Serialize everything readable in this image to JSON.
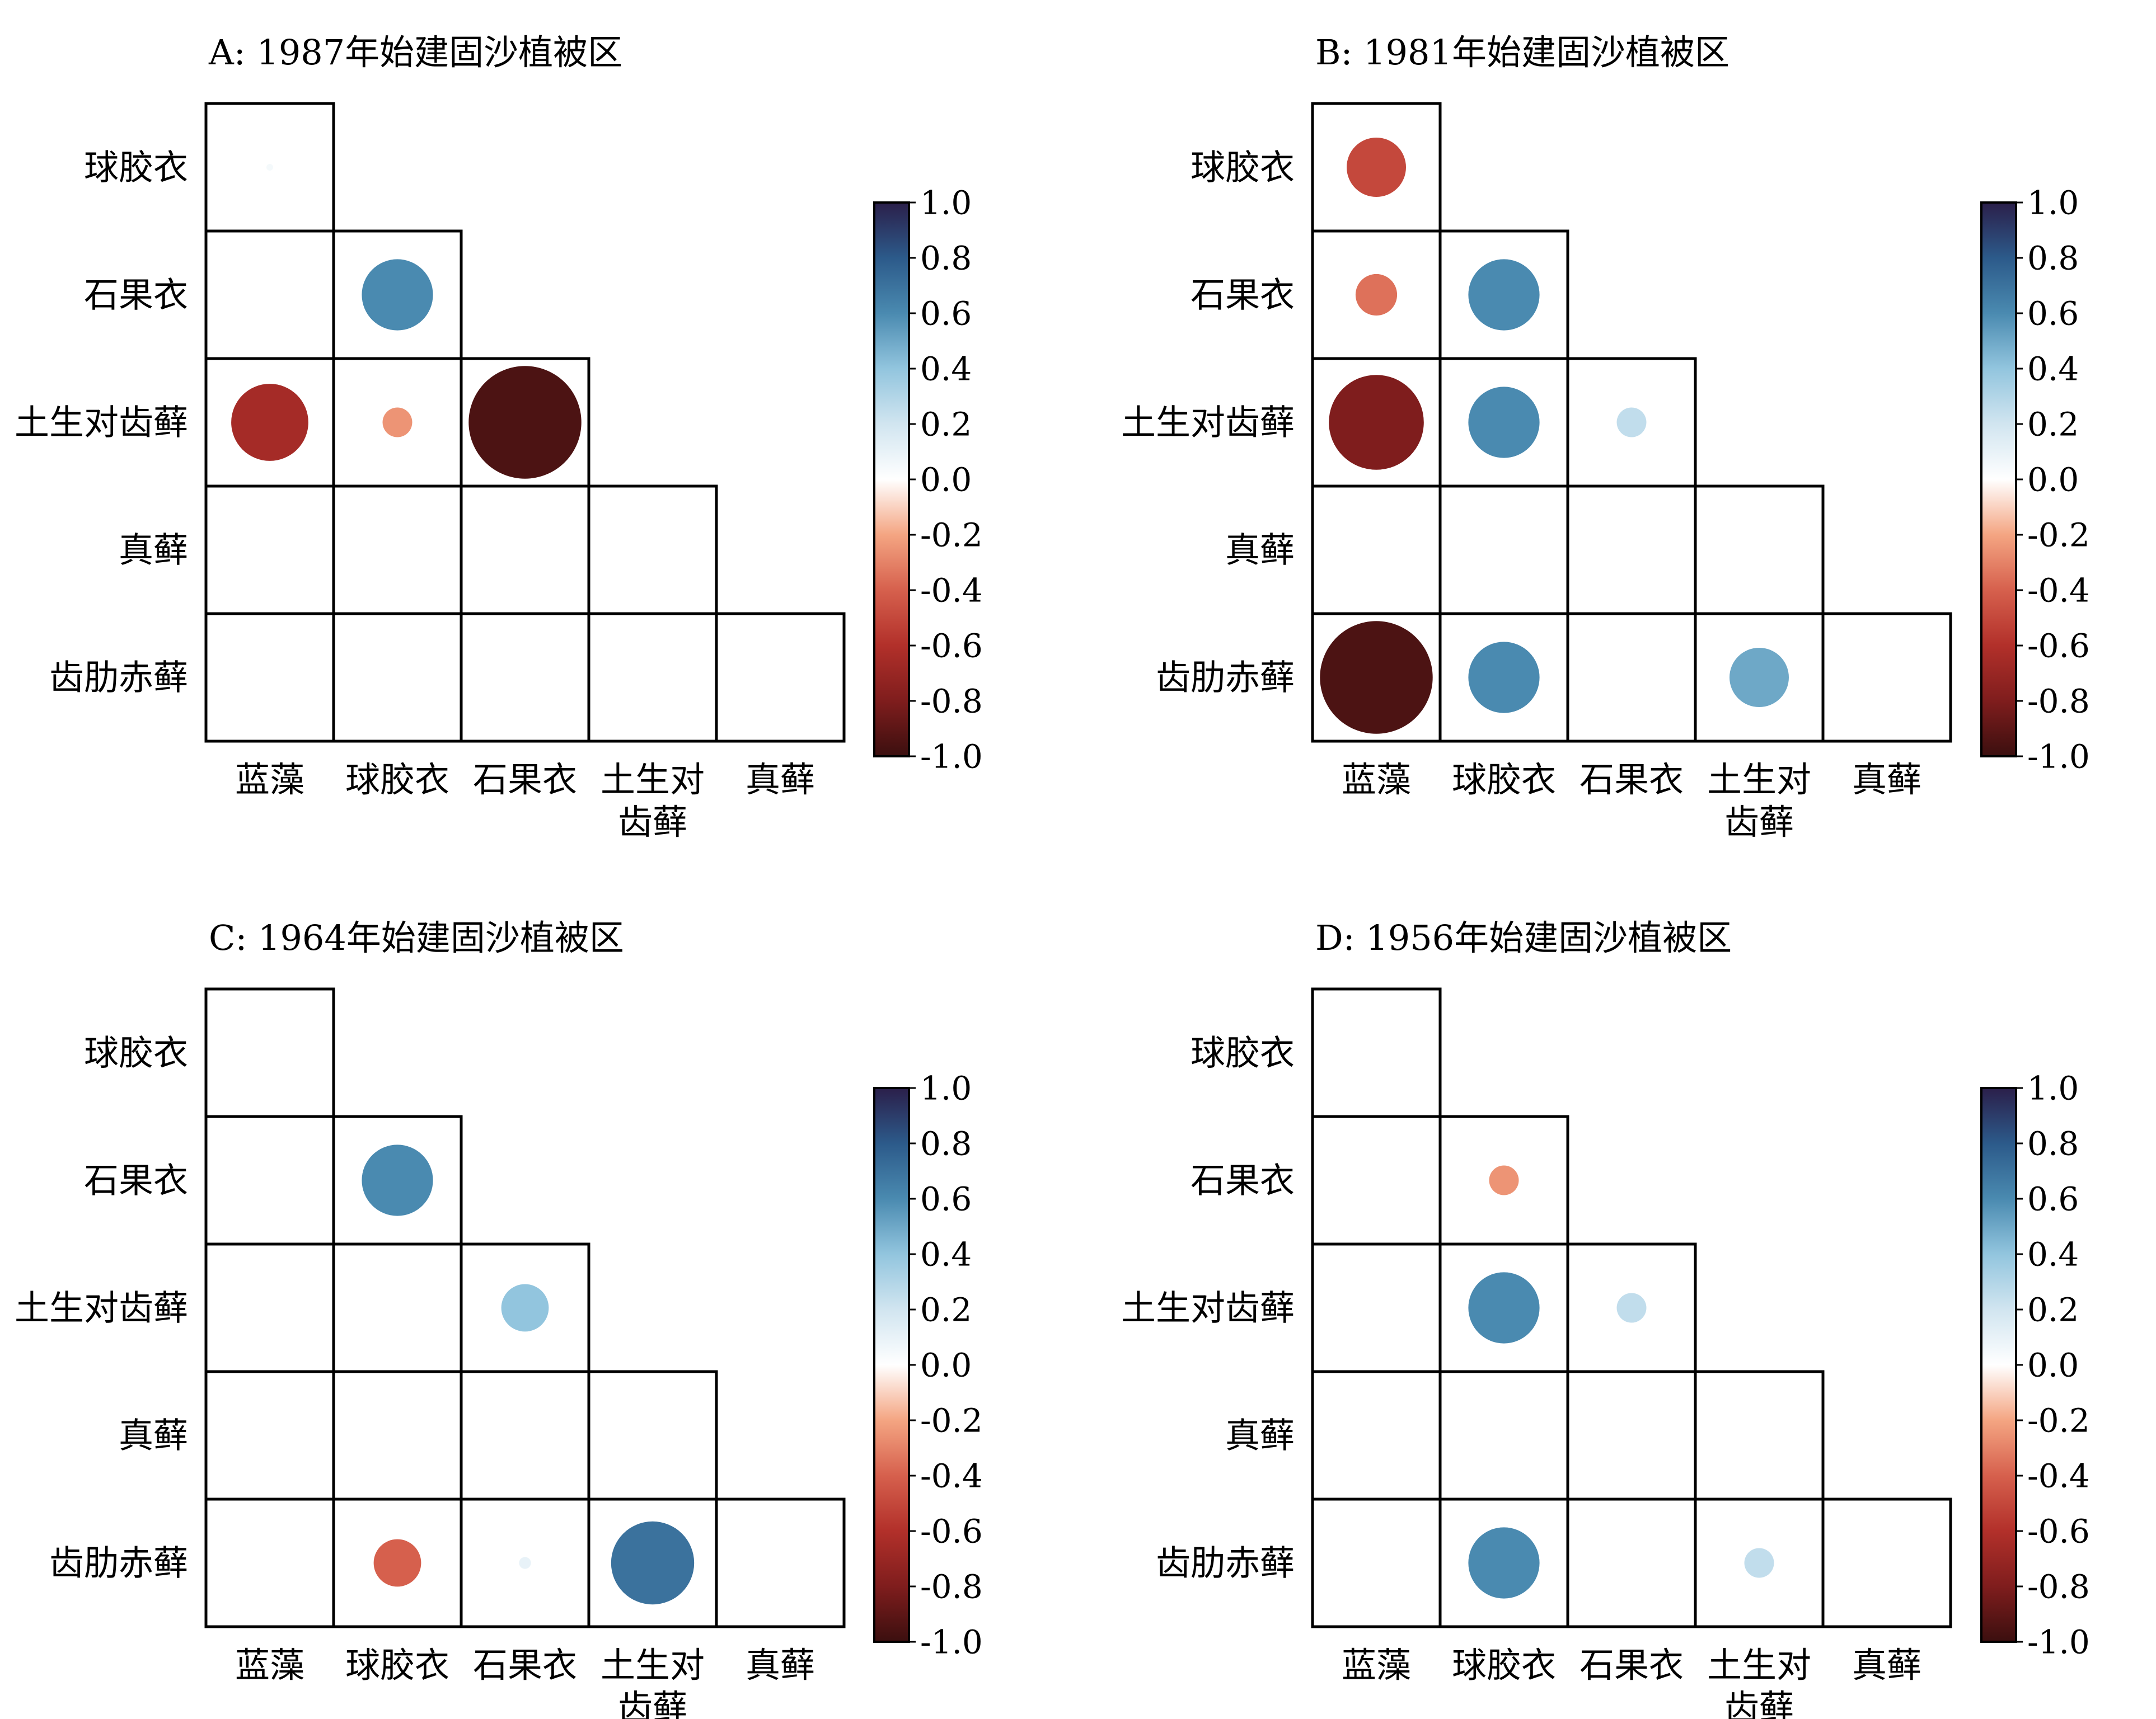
{
  "colorbar_ticks": [
    "1.0",
    "0.8",
    "0.6",
    "0.4",
    "0.2",
    "0.0",
    "-0.2",
    "-0.4",
    "-0.6",
    "-0.8",
    "-1.0"
  ],
  "colorscale": {
    "stops": [
      {
        "v": -1.0,
        "color": "#3b0f0f"
      },
      {
        "v": -0.8,
        "color": "#7f1d1d"
      },
      {
        "v": -0.6,
        "color": "#b2302a"
      },
      {
        "v": -0.4,
        "color": "#d6604d"
      },
      {
        "v": -0.2,
        "color": "#f4a582"
      },
      {
        "v": 0.0,
        "color": "#ffffff"
      },
      {
        "v": 0.2,
        "color": "#d1e5f0"
      },
      {
        "v": 0.4,
        "color": "#92c5de"
      },
      {
        "v": 0.6,
        "color": "#4a8ab0"
      },
      {
        "v": 0.8,
        "color": "#2c5a8a"
      },
      {
        "v": 1.0,
        "color": "#2b1f4a"
      }
    ]
  },
  "chart_data": [
    {
      "type": "heatmap",
      "title": "A: 1987年始建固沙植被区",
      "row_labels": [
        "球胶衣",
        "石果衣",
        "土生对齿藓",
        "真藓",
        "齿肋赤藓"
      ],
      "col_labels": [
        "蓝藻",
        "球胶衣",
        "石果衣",
        "土生对\n齿藓",
        "真藓"
      ],
      "values": [
        [
          0.05
        ],
        [
          null,
          0.6
        ],
        [
          -0.65,
          -0.25,
          -0.95
        ],
        [
          null,
          null,
          null,
          null
        ],
        [
          null,
          null,
          null,
          null,
          null
        ]
      ]
    },
    {
      "type": "heatmap",
      "title": "B: 1981年始建固沙植被区",
      "row_labels": [
        "球胶衣",
        "石果衣",
        "土生对齿藓",
        "真藓",
        "齿肋赤藓"
      ],
      "col_labels": [
        "蓝藻",
        "球胶衣",
        "石果衣",
        "土生对\n齿藓",
        "真藓"
      ],
      "values": [
        [
          -0.5
        ],
        [
          -0.35,
          0.6
        ],
        [
          -0.8,
          0.6,
          0.25
        ],
        [
          null,
          null,
          null,
          null
        ],
        [
          -0.95,
          0.6,
          null,
          0.5,
          null
        ]
      ]
    },
    {
      "type": "heatmap",
      "title": "C: 1964年始建固沙植被区",
      "row_labels": [
        "球胶衣",
        "石果衣",
        "土生对齿藓",
        "真藓",
        "齿肋赤藓"
      ],
      "col_labels": [
        "蓝藻",
        "球胶衣",
        "石果衣",
        "土生对\n齿藓",
        "真藓"
      ],
      "values": [
        [
          null
        ],
        [
          null,
          0.6
        ],
        [
          null,
          null,
          0.4
        ],
        [
          null,
          null,
          null,
          null
        ],
        [
          null,
          -0.4,
          0.1,
          0.7,
          null
        ]
      ]
    },
    {
      "type": "heatmap",
      "title": "D: 1956年始建固沙植被区",
      "row_labels": [
        "球胶衣",
        "石果衣",
        "土生对齿藓",
        "真藓",
        "齿肋赤藓"
      ],
      "col_labels": [
        "蓝藻",
        "球胶衣",
        "石果衣",
        "土生对\n齿藓",
        "真藓"
      ],
      "values": [
        [
          null
        ],
        [
          null,
          -0.25
        ],
        [
          null,
          0.6,
          0.25
        ],
        [
          null,
          null,
          null,
          null
        ],
        [
          null,
          0.6,
          null,
          0.25,
          null
        ]
      ]
    }
  ]
}
